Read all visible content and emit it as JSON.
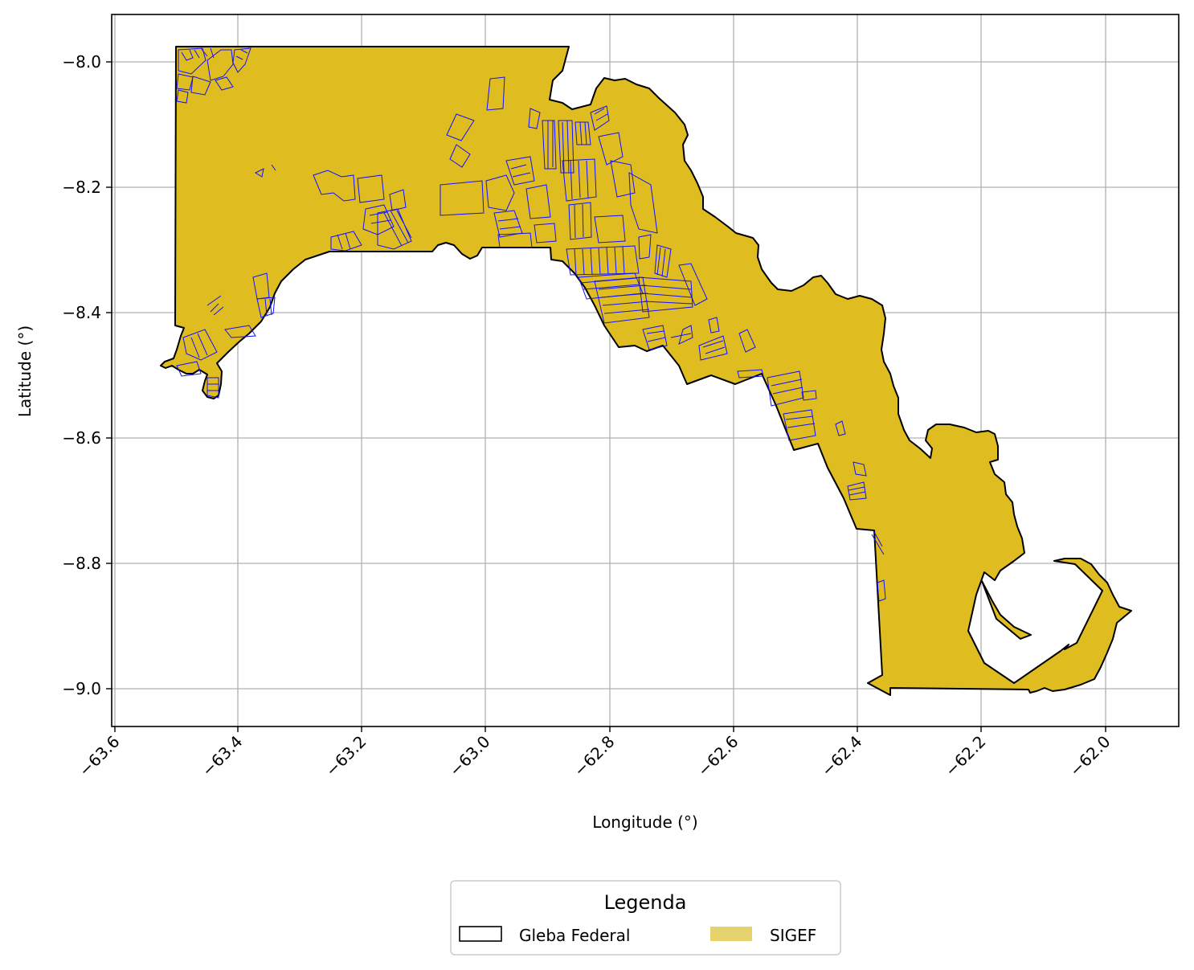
{
  "map": {
    "x_axis_label": "Longitude (°)",
    "y_axis_label": "Latitude (°)",
    "x_ticks": [
      "−63.6",
      "−63.4",
      "−63.2",
      "−63.0",
      "−62.8",
      "−62.6",
      "−62.4",
      "−62.2",
      "−62.0"
    ],
    "y_ticks": [
      "−8.0",
      "−8.2",
      "−8.4",
      "−8.6",
      "−8.8",
      "−9.0"
    ],
    "x_range": [
      -63.61,
      -61.89
    ],
    "y_range": [
      -9.06,
      -7.925
    ],
    "grid": true
  },
  "legend": {
    "title": "Legenda",
    "entries": [
      {
        "label": "Gleba Federal",
        "style": "outline",
        "color": "#000000"
      },
      {
        "label": "SIGEF",
        "style": "fill",
        "color": "#e6d36d"
      }
    ]
  },
  "colors": {
    "gleba_fill": "#dfbd20",
    "gleba_outline": "#000000",
    "sigef_outline": "#1010ff",
    "grid": "#b0b0b0"
  }
}
